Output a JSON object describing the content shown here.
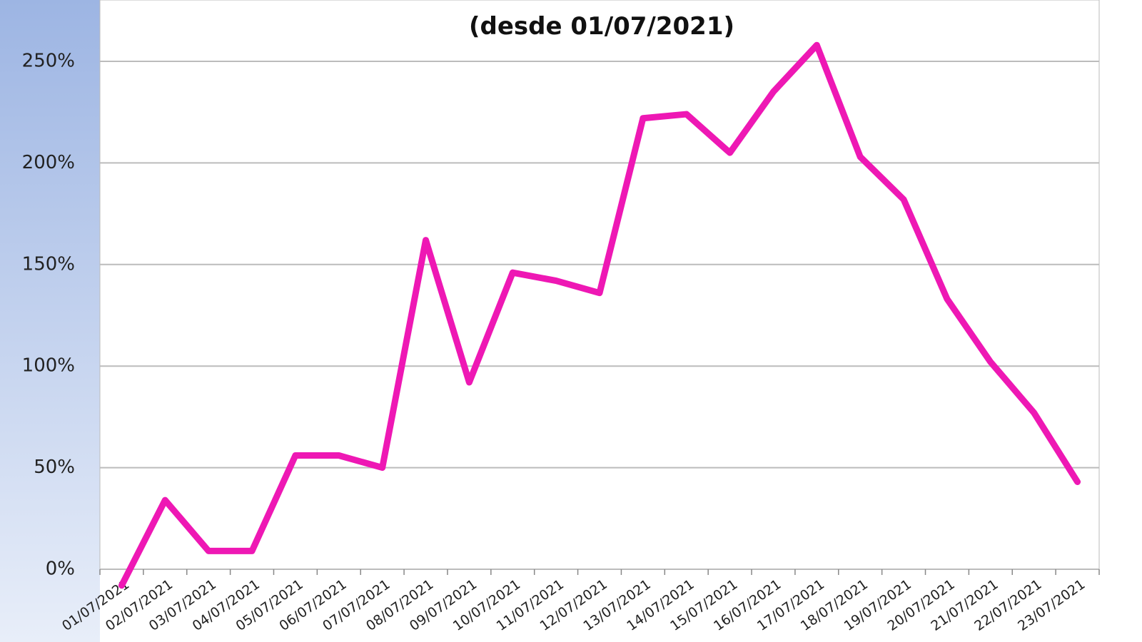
{
  "chart_data": {
    "type": "line",
    "subtitle": "(desde 01/07/2021)",
    "categories": [
      "01/07/2021",
      "02/07/2021",
      "03/07/2021",
      "04/07/2021",
      "05/07/2021",
      "06/07/2021",
      "07/07/2021",
      "08/07/2021",
      "09/07/2021",
      "10/07/2021",
      "11/07/2021",
      "12/07/2021",
      "13/07/2021",
      "14/07/2021",
      "15/07/2021",
      "16/07/2021",
      "17/07/2021",
      "18/07/2021",
      "19/07/2021",
      "20/07/2021",
      "21/07/2021",
      "22/07/2021",
      "23/07/2021"
    ],
    "series": [
      {
        "color": "#ee18b4",
        "values": [
          -8,
          34,
          9,
          9,
          56,
          56,
          50,
          162,
          92,
          146,
          142,
          136,
          222,
          224,
          205,
          235,
          258,
          203,
          182,
          133,
          102,
          77,
          43
        ]
      }
    ],
    "ylim": [
      0,
      280
    ],
    "yticks": [
      {
        "value": 0,
        "label": "0%"
      },
      {
        "value": 50,
        "label": "50%"
      },
      {
        "value": 100,
        "label": "100%"
      },
      {
        "value": 150,
        "label": "150%"
      },
      {
        "value": 200,
        "label": "200%"
      },
      {
        "value": 250,
        "label": "250%"
      }
    ],
    "grid": true
  }
}
